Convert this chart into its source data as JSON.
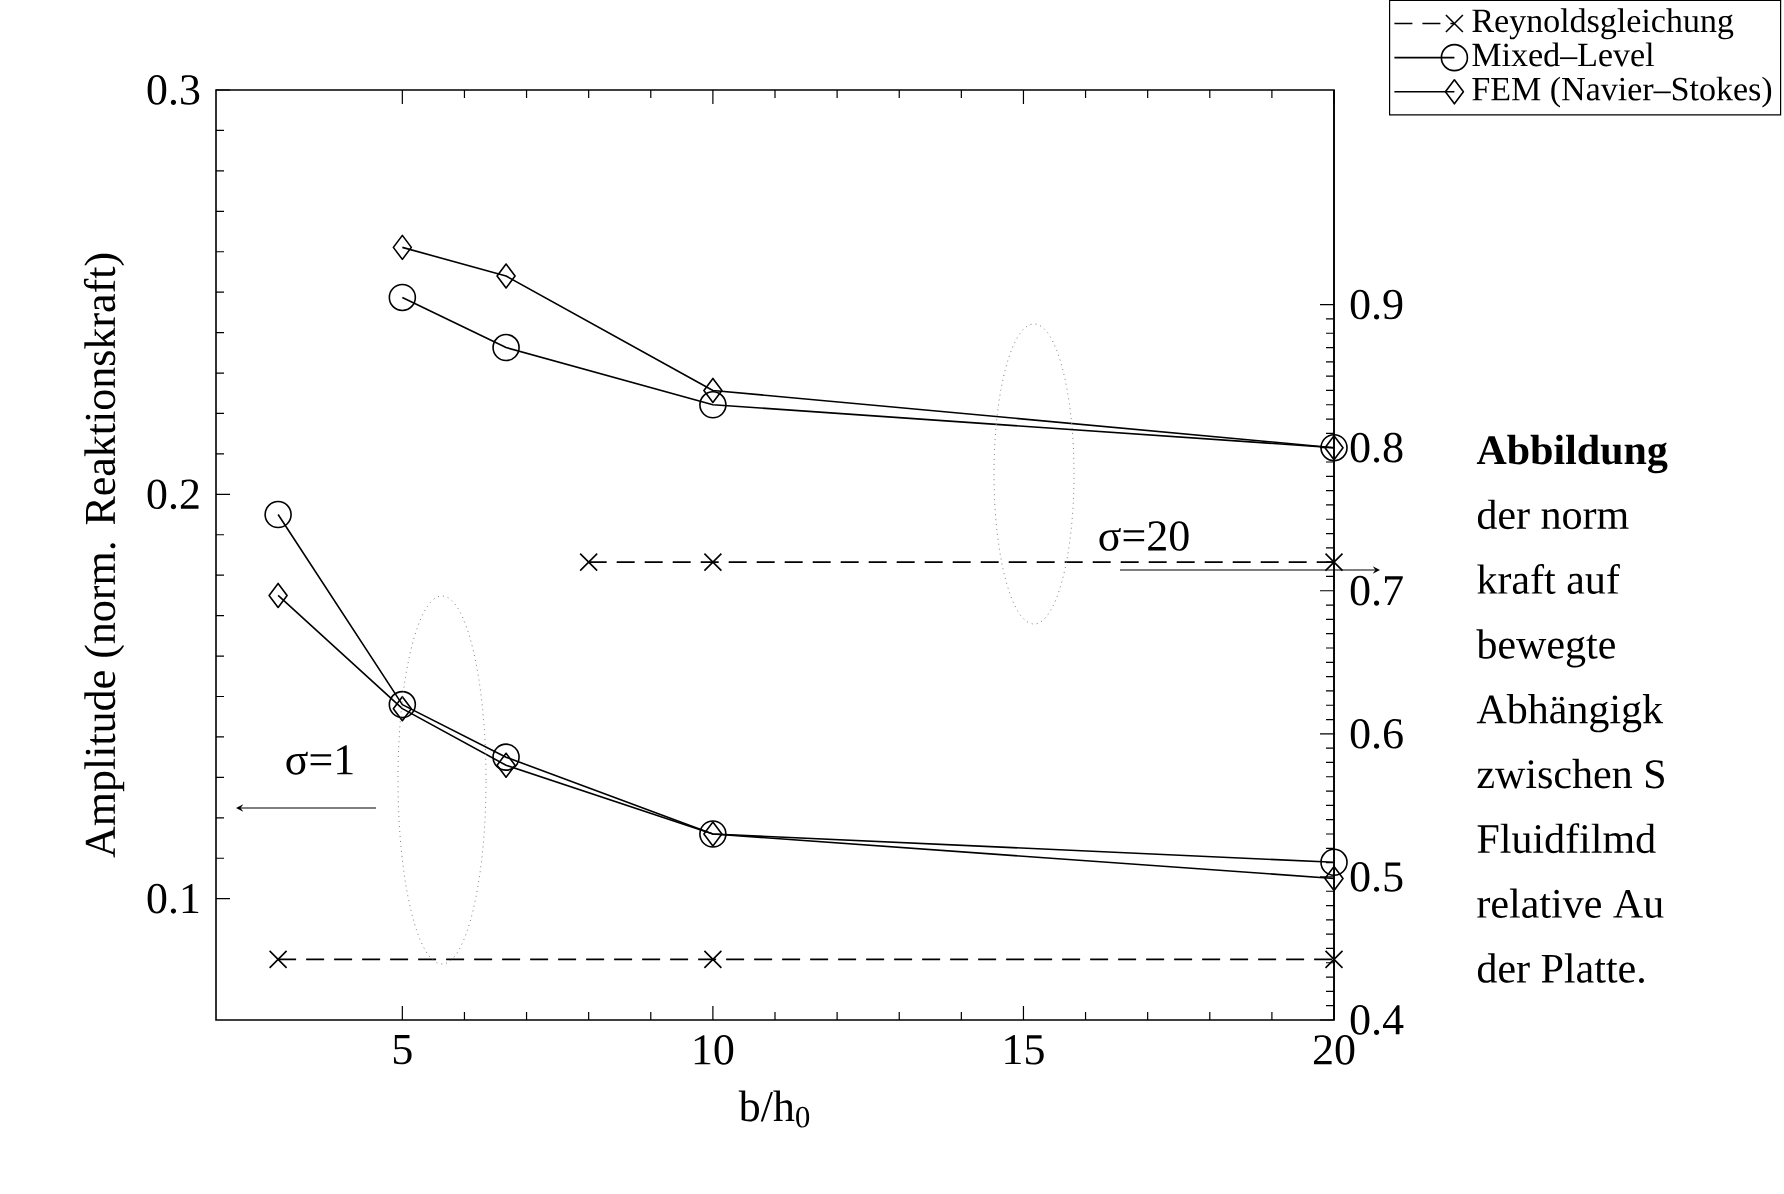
{
  "chart_data": {
    "type": "line",
    "xlabel": "b/h$_{0}$",
    "ylabel": "Amplitude (norm. Reaktionskraft)",
    "xlim": [
      2,
      20
    ],
    "xticks": [
      5,
      10,
      15,
      20
    ],
    "ylim": [
      0.07,
      0.3
    ],
    "yticks": [
      0.1,
      0.2,
      0.3
    ],
    "y2lim": [
      0.4,
      1.05
    ],
    "y2ticks": [
      0.4,
      0.5,
      0.6,
      0.7,
      0.8,
      0.9
    ],
    "legend": "top right",
    "series": [
      {
        "name": "Reynoldsgleichung",
        "color": "#000000",
        "marker": "cross",
        "line_style": "dashed",
        "x": [
          3,
          10,
          20
        ],
        "values": [
          0.085,
          0.085,
          0.085
        ]
      },
      {
        "name": "Mixed–Level",
        "color": "#000000",
        "marker": "circle",
        "line_style": "solid",
        "x": [
          3,
          5,
          6.67,
          10,
          20
        ],
        "values": [
          0.195,
          0.148,
          0.135,
          0.116,
          0.109
        ]
      },
      {
        "name": "FEM (Navier–Stokes)",
        "color": "#000000",
        "marker": "diamond",
        "line_style": "solid",
        "x": [
          3,
          5,
          6.67,
          10,
          20
        ],
        "values": [
          0.175,
          0.147,
          0.133,
          0.116,
          0.105
        ]
      },
      {
        "color": "#000000",
        "marker": "cross",
        "line_style": "dashed",
        "axis": "y2",
        "x": [
          8,
          10,
          20
        ],
        "values": [
          0.72,
          0.72,
          0.72
        ]
      },
      {
        "color": "#000000",
        "marker": "circle",
        "line_style": "solid",
        "axis": "y2",
        "x": [
          5,
          6.67,
          10,
          20
        ],
        "values": [
          0.905,
          0.87,
          0.83,
          0.8
        ]
      },
      {
        "color": "#000000",
        "marker": "diamond",
        "line_style": "solid",
        "axis": "y2",
        "x": [
          5,
          6.67,
          10,
          20
        ],
        "values": [
          0.94,
          0.92,
          0.84,
          0.8
        ]
      }
    ],
    "annotations": [
      "σ=1",
      "σ=20",
      "Abbildung",
      "der  norm",
      "kraft  auf",
      "bewegte",
      "Abhängigk",
      "zwischen S",
      "Fluidfilmd",
      "relative Au",
      "der Platte."
    ]
  }
}
